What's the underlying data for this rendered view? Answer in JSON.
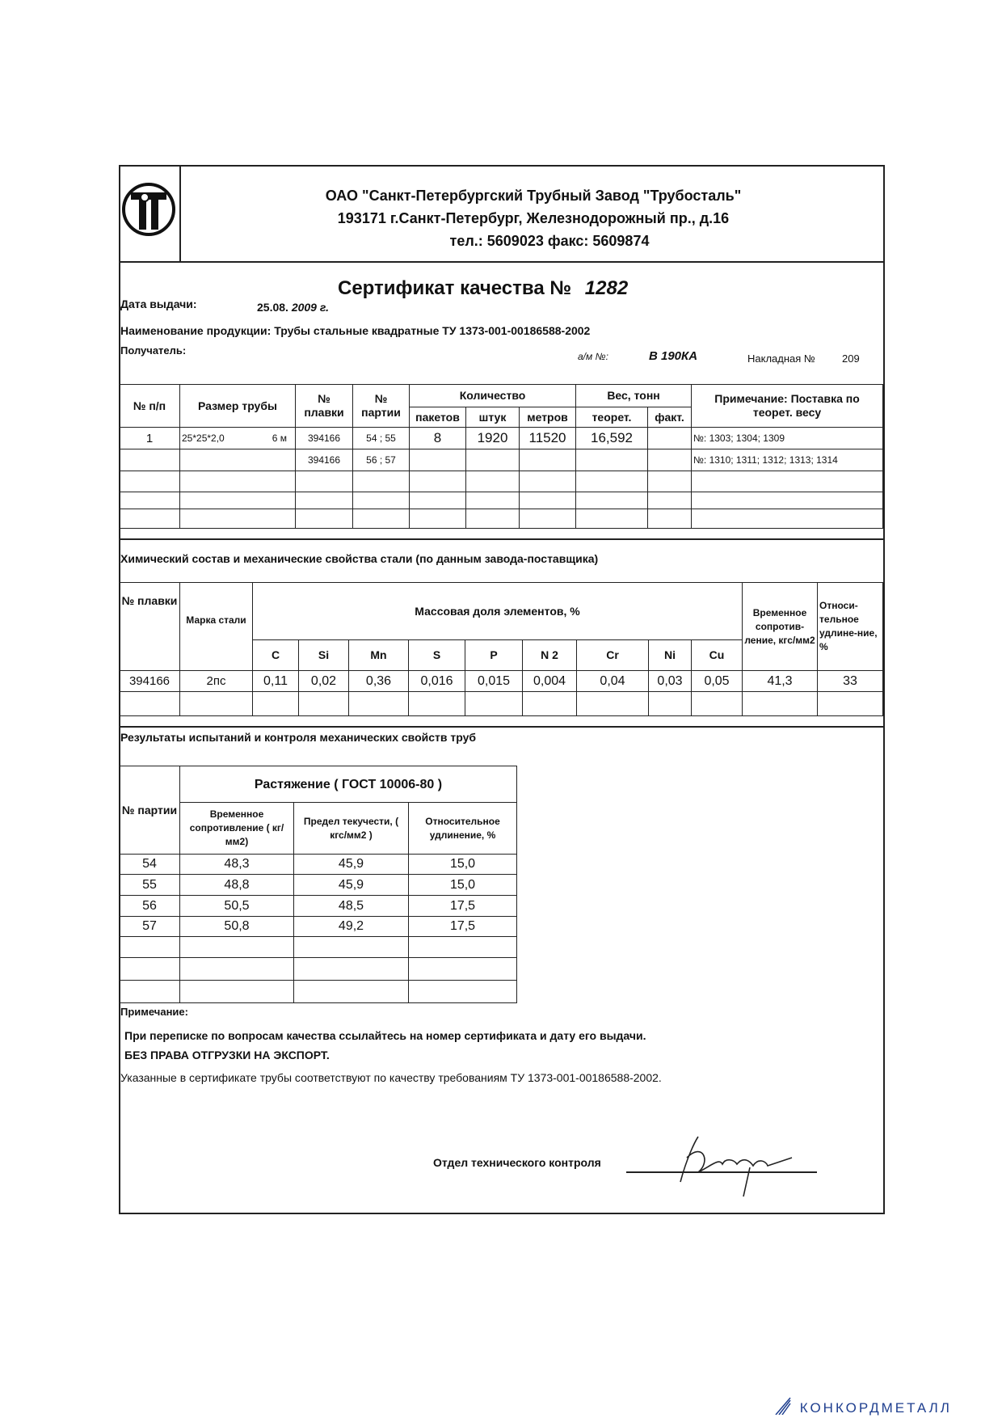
{
  "header": {
    "company": "ОАО \"Санкт-Петербургский Трубный Завод \"Трубосталь\"",
    "address": "193171   г.Санкт-Петербург, Железнодорожный пр., д.16",
    "phone": "тел.: 5609023     факс: 5609874"
  },
  "certificate": {
    "title": "Сертификат качества №",
    "number": "1282",
    "date_label": "Дата выдачи:",
    "date_value": "25.08.",
    "date_year": "2009 г.",
    "product": "Наименование продукции: Трубы стальные квадратные ТУ 1373-001-00186588-2002",
    "recipient_label": "Получатель:",
    "vehicle_label": "а/м №:",
    "vehicle_value": "В 190КА",
    "invoice_label": "Накладная №",
    "invoice_value": "209"
  },
  "shipment_table": {
    "headers": {
      "no": "№ п/п",
      "size": "Размер трубы",
      "heat": "№ плавки",
      "lot": "№ партии",
      "quantity": "Количество",
      "packages": "пакетов",
      "pieces": "штук",
      "meters": "метров",
      "weight": "Вес, тонн",
      "theor": "теорет.",
      "fact": "факт.",
      "note": "Примечание: Поставка по теорет. весу"
    },
    "rows": [
      {
        "no": "1",
        "size": "25*25*2,0",
        "length": "6 м",
        "heat": "394166",
        "lot": "54 ; 55",
        "packages": "8",
        "pieces": "1920",
        "meters": "11520",
        "theor": "16,592",
        "fact": "",
        "note": "№: 1303; 1304; 1309"
      },
      {
        "no": "",
        "size": "",
        "length": "",
        "heat": "394166",
        "lot": "56 ; 57",
        "packages": "",
        "pieces": "",
        "meters": "",
        "theor": "",
        "fact": "",
        "note": "№: 1310; 1311; 1312; 1313; 1314"
      }
    ]
  },
  "chem": {
    "title": "Химический состав и механические свойства стали (по данным завода-поставщика)",
    "headers": {
      "heat": "№ плавки",
      "grade": "Марка стали",
      "mass": "Массовая доля элементов, %",
      "tensile": "Временное сопротив-ление, кгс/мм2",
      "elong": "Относи-тельное удлине-ние, %"
    },
    "elements": [
      "C",
      "Si",
      "Mn",
      "S",
      "P",
      "N 2",
      "Cr",
      "Ni",
      "Cu"
    ],
    "row": {
      "heat": "394166",
      "grade": "2пс",
      "values": [
        "0,11",
        "0,02",
        "0,36",
        "0,016",
        "0,015",
        "0,004",
        "0,04",
        "0,03",
        "0,05"
      ],
      "tensile": "41,3",
      "elong": "33"
    }
  },
  "results": {
    "title": "Результаты испытаний  и контроля механических свойств труб",
    "headers": {
      "lot": "№ партии",
      "tension": "Растяжение   ( ГОСТ 10006-80 )",
      "tensile": "Временное сопротивление ( кг/мм2)",
      "yield": "Предел текучести, ( кгс/мм2 )",
      "elong": "Относительное удлинение, %"
    },
    "rows": [
      {
        "lot": "54",
        "tensile": "48,3",
        "yield": "45,9",
        "elong": "15,0"
      },
      {
        "lot": "55",
        "tensile": "48,8",
        "yield": "45,9",
        "elong": "15,0"
      },
      {
        "lot": "56",
        "tensile": "50,5",
        "yield": "48,5",
        "elong": "17,5"
      },
      {
        "lot": "57",
        "tensile": "50,8",
        "yield": "49,2",
        "elong": "17,5"
      }
    ]
  },
  "notes": {
    "label": "Примечание:",
    "line1": "При переписке по вопросам качества ссылайтесь на номер сертификата и дату его выдачи.",
    "line2": "БЕЗ ПРАВА ОТГРУЗКИ НА ЭКСПОРТ.",
    "line3": "Указанные в сертификате трубы соответствуют по  качеству требованиям ТУ 1373-001-00186588-2002."
  },
  "signature": {
    "label": "Отдел технического контроля"
  },
  "watermark": {
    "brand": "КОНКОРДМЕТАЛЛ",
    "color": "#1f3f8f"
  }
}
